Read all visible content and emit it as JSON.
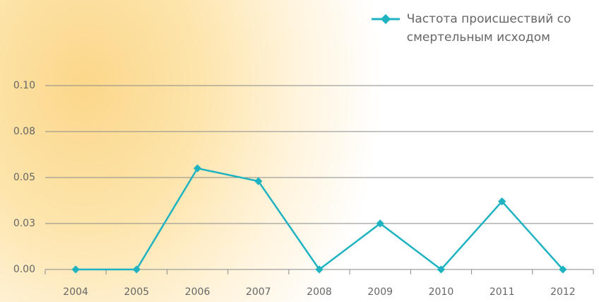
{
  "chart_data": {
    "type": "line",
    "categories": [
      "2004",
      "2005",
      "2006",
      "2007",
      "2008",
      "2009",
      "2010",
      "2011",
      "2012"
    ],
    "series": [
      {
        "name": "Частота происшествий со смертельным исходом",
        "color": "#1fb3c2",
        "values": [
          0,
          0,
          0.055,
          0.048,
          0,
          0.025,
          0,
          0.037,
          0
        ]
      }
    ],
    "ylim": [
      0,
      0.1
    ],
    "yticks": [
      {
        "value": 0,
        "label": "0.00"
      },
      {
        "value": 0.025,
        "label": "0.03"
      },
      {
        "value": 0.05,
        "label": "0.05"
      },
      {
        "value": 0.075,
        "label": "0.08"
      },
      {
        "value": 0.1,
        "label": "0.10"
      }
    ],
    "grid": true,
    "legend": "top-right"
  }
}
